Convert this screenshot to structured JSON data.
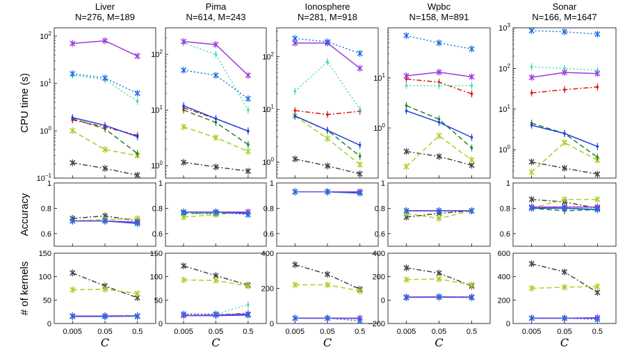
{
  "chart_data": {
    "type": "line",
    "x_categories": [
      "0.005",
      "0.05",
      "0.5"
    ],
    "xlabel": "C",
    "series_colors": {
      "black": "#444444",
      "yellowgreen": "#a8d020",
      "green": "#208020",
      "red": "#e01010",
      "blue": "#1a3fe0",
      "purple": "#9a3ae0",
      "cyan": "#40e0a8",
      "bluex": "#1a6fe0"
    },
    "rows": [
      {
        "ylabel": "CPU time (s)",
        "scale": "log"
      },
      {
        "ylabel": "Accuracy",
        "scale": "linear"
      },
      {
        "ylabel": "# of kernels",
        "scale": "linear"
      }
    ],
    "datasets": [
      {
        "name": "Liver",
        "stats": "N=276, M=189",
        "cpu": {
          "ylim": [
            0.1,
            150
          ],
          "ticks": [
            {
              "v": 0.1,
              "b": "10",
              "e": "−1"
            },
            {
              "v": 1,
              "b": "10",
              "e": "0"
            },
            {
              "v": 10,
              "b": "10",
              "e": "1"
            },
            {
              "v": 100,
              "b": "10",
              "e": "2"
            }
          ],
          "series": {
            "purple": [
              70,
              80,
              38
            ],
            "bluex": [
              16,
              13,
              6.2
            ],
            "cyan": [
              15,
              12,
              4.2
            ],
            "blue": [
              1.9,
              1.3,
              0.75
            ],
            "red": [
              1.7,
              1.2,
              0.8
            ],
            "green": [
              1.8,
              1.1,
              0.33
            ],
            "yellowgreen": [
              1.0,
              0.4,
              0.3
            ],
            "black": [
              0.21,
              0.16,
              0.115
            ]
          }
        },
        "acc": {
          "ylim": [
            0.5,
            1.0
          ],
          "ticks": [
            "0.6",
            "0.8",
            "1"
          ],
          "series": {
            "black": [
              0.72,
              0.74,
              0.7
            ],
            "yellowgreen": [
              0.7,
              0.71,
              0.72
            ],
            "green": [
              0.7,
              0.7,
              0.69
            ],
            "red": [
              0.7,
              0.7,
              0.69
            ],
            "blue": [
              0.7,
              0.7,
              0.68
            ],
            "purple": [
              0.7,
              0.7,
              0.69
            ],
            "cyan": [
              0.7,
              0.7,
              0.69
            ],
            "bluex": [
              0.7,
              0.7,
              0.68
            ]
          }
        },
        "ker": {
          "ylim": [
            0,
            150
          ],
          "ticks": [
            "0",
            "50",
            "100",
            "150"
          ],
          "series": {
            "black": [
              108,
              80,
              55
            ],
            "yellowgreen": [
              72,
              73,
              64
            ],
            "green": [
              16,
              16,
              17
            ],
            "red": [
              16,
              16,
              17
            ],
            "blue": [
              15,
              15,
              16
            ],
            "purple": [
              16,
              16,
              16
            ],
            "cyan": [
              16,
              16,
              17
            ],
            "bluex": [
              15,
              15,
              15
            ]
          }
        }
      },
      {
        "name": "Pima",
        "stats": "N=614, M=243",
        "cpu": {
          "ylim": [
            0.6,
            300
          ],
          "ticks": [
            {
              "v": 1,
              "b": "10",
              "e": "0"
            },
            {
              "v": 10,
              "b": "10",
              "e": "1"
            },
            {
              "v": 100,
              "b": "10",
              "e": "2"
            }
          ],
          "series": {
            "purple": [
              170,
              150,
              42
            ],
            "bluex": [
              52,
              42,
              16
            ],
            "cyan": [
              160,
              100,
              10
            ],
            "blue": [
              12,
              7,
              4.2
            ],
            "red": [
              11,
              7,
              4.2
            ],
            "green": [
              10,
              6,
              2.4
            ],
            "yellowgreen": [
              5,
              3.2,
              1.8
            ],
            "black": [
              1.15,
              0.95,
              0.8
            ]
          }
        },
        "acc": {
          "ylim": [
            0.5,
            1.0
          ],
          "ticks": [
            "0.6",
            "0.8",
            "1"
          ],
          "series": {
            "black": [
              0.76,
              0.76,
              0.77
            ],
            "yellowgreen": [
              0.73,
              0.75,
              0.77
            ],
            "green": [
              0.76,
              0.76,
              0.77
            ],
            "red": [
              0.77,
              0.77,
              0.77
            ],
            "blue": [
              0.77,
              0.77,
              0.76
            ],
            "purple": [
              0.77,
              0.77,
              0.77
            ],
            "cyan": [
              0.76,
              0.76,
              0.76
            ],
            "bluex": [
              0.77,
              0.77,
              0.75
            ]
          }
        },
        "ker": {
          "ylim": [
            0,
            150
          ],
          "ticks": [
            "0",
            "50",
            "100",
            "150"
          ],
          "series": {
            "black": [
              123,
              102,
              82
            ],
            "yellowgreen": [
              93,
              92,
              80
            ],
            "green": [
              17,
              17,
              20
            ],
            "red": [
              18,
              18,
              22
            ],
            "blue": [
              17,
              17,
              18
            ],
            "purple": [
              17,
              18,
              20
            ],
            "cyan": [
              18,
              20,
              40
            ],
            "bluex": [
              20,
              20,
              18
            ]
          }
        }
      },
      {
        "name": "Ionosphere",
        "stats": "N=281, M=918",
        "cpu": {
          "ylim": [
            0.5,
            350
          ],
          "ticks": [
            {
              "v": 1,
              "b": "10",
              "e": "0"
            },
            {
              "v": 10,
              "b": "10",
              "e": "1"
            },
            {
              "v": 100,
              "b": "10",
              "e": "2"
            }
          ],
          "series": {
            "purple": [
              180,
              180,
              60
            ],
            "bluex": [
              220,
              190,
              115
            ],
            "cyan": [
              22,
              80,
              10
            ],
            "blue": [
              7.5,
              4,
              2.1
            ],
            "red": [
              9.5,
              8,
              9.2
            ],
            "green": [
              7.5,
              4,
              1.3
            ],
            "yellowgreen": [
              7.5,
              2.8,
              0.9
            ],
            "black": [
              1.15,
              0.85,
              0.6
            ]
          }
        },
        "acc": {
          "ylim": [
            0.5,
            1.0
          ],
          "ticks": [
            "0.6",
            "0.8",
            "1"
          ],
          "series": {
            "black": [
              0.93,
              0.93,
              0.93
            ],
            "yellowgreen": [
              0.93,
              0.93,
              0.92
            ],
            "green": [
              0.93,
              0.93,
              0.93
            ],
            "red": [
              0.93,
              0.93,
              0.93
            ],
            "blue": [
              0.93,
              0.93,
              0.92
            ],
            "purple": [
              0.93,
              0.93,
              0.93
            ],
            "cyan": [
              0.93,
              0.93,
              0.93
            ],
            "bluex": [
              0.93,
              0.93,
              0.92
            ]
          }
        },
        "ker": {
          "ylim": [
            0,
            400
          ],
          "ticks": [
            "0",
            "200",
            "400"
          ],
          "series": {
            "black": [
              335,
              280,
              195
            ],
            "yellowgreen": [
              220,
              220,
              185
            ],
            "green": [
              30,
              30,
              30
            ],
            "red": [
              30,
              30,
              30
            ],
            "blue": [
              30,
              30,
              28
            ],
            "purple": [
              30,
              30,
              30
            ],
            "cyan": [
              30,
              30,
              30
            ],
            "bluex": [
              30,
              30,
              15
            ]
          }
        }
      },
      {
        "name": "Wpbc",
        "stats": "N=158, M=891",
        "cpu": {
          "ylim": [
            0.1,
            100
          ],
          "ticks": [
            {
              "v": 1,
              "b": "10",
              "e": "0"
            },
            {
              "v": 10,
              "b": "10",
              "e": "1"
            }
          ],
          "series": {
            "bluex": [
              70,
              50,
              38
            ],
            "purple": [
              11,
              13,
              10.5
            ],
            "red": [
              9.5,
              8.2,
              4.8
            ],
            "cyan": [
              7,
              7,
              7
            ],
            "green": [
              2.8,
              1.5,
              0.4
            ],
            "blue": [
              2.2,
              1.3,
              0.65
            ],
            "yellowgreen": [
              0.17,
              0.7,
              0.23
            ],
            "black": [
              0.34,
              0.27,
              0.18
            ]
          }
        },
        "acc": {
          "ylim": [
            0.5,
            1.0
          ],
          "ticks": [
            "0.6",
            "0.8",
            "1"
          ],
          "series": {
            "black": [
              0.73,
              0.76,
              0.78
            ],
            "yellowgreen": [
              0.76,
              0.72,
              0.78
            ],
            "green": [
              0.78,
              0.78,
              0.78
            ],
            "red": [
              0.78,
              0.78,
              0.78
            ],
            "blue": [
              0.78,
              0.78,
              0.78
            ],
            "purple": [
              0.78,
              0.78,
              0.78
            ],
            "cyan": [
              0.78,
              0.78,
              0.78
            ],
            "bluex": [
              0.78,
              0.78,
              0.78
            ]
          }
        },
        "ker": {
          "ylim": [
            -200,
            400
          ],
          "ticks": [
            "−200",
            "0",
            "200",
            "400"
          ],
          "series": {
            "black": [
              275,
              230,
              120
            ],
            "yellowgreen": [
              175,
              180,
              130
            ],
            "green": [
              25,
              25,
              25
            ],
            "red": [
              25,
              25,
              25
            ],
            "blue": [
              25,
              25,
              25
            ],
            "purple": [
              25,
              28,
              25
            ],
            "cyan": [
              25,
              28,
              25
            ],
            "bluex": [
              20,
              25,
              20
            ]
          }
        }
      },
      {
        "name": "Sonar",
        "stats": "N=166, M=1647",
        "cpu": {
          "ylim": [
            0.2,
            1000
          ],
          "ticks": [
            {
              "v": 1,
              "b": "10",
              "e": "0"
            },
            {
              "v": 10,
              "b": "10",
              "e": "1"
            },
            {
              "v": 100,
              "b": "10",
              "e": "2"
            },
            {
              "v": 1000,
              "b": "10",
              "e": "3"
            }
          ],
          "series": {
            "bluex": [
              850,
              800,
              700
            ],
            "cyan": [
              110,
              100,
              90
            ],
            "purple": [
              60,
              80,
              75
            ],
            "red": [
              25,
              30,
              35
            ],
            "blue": [
              4,
              2.5,
              1.2
            ],
            "green": [
              4.5,
              2.5,
              0.65
            ],
            "yellowgreen": [
              0.28,
              1.5,
              0.55
            ],
            "black": [
              0.5,
              0.35,
              0.25
            ]
          }
        },
        "acc": {
          "ylim": [
            0.5,
            1.0
          ],
          "ticks": [
            "0.6",
            "0.8",
            "1"
          ],
          "series": {
            "black": [
              0.87,
              0.85,
              0.8
            ],
            "yellowgreen": [
              0.8,
              0.87,
              0.87
            ],
            "green": [
              0.8,
              0.78,
              0.79
            ],
            "red": [
              0.81,
              0.81,
              0.81
            ],
            "blue": [
              0.8,
              0.8,
              0.79
            ],
            "purple": [
              0.81,
              0.81,
              0.81
            ],
            "cyan": [
              0.8,
              0.8,
              0.8
            ],
            "bluex": [
              0.8,
              0.8,
              0.79
            ]
          }
        },
        "ker": {
          "ylim": [
            0,
            600
          ],
          "ticks": [
            "0",
            "200",
            "400",
            "600"
          ],
          "series": {
            "black": [
              510,
              440,
              265
            ],
            "yellowgreen": [
              300,
              310,
              315
            ],
            "green": [
              45,
              45,
              45
            ],
            "red": [
              45,
              45,
              45
            ],
            "blue": [
              45,
              45,
              45
            ],
            "purple": [
              45,
              45,
              50
            ],
            "cyan": [
              45,
              45,
              45
            ],
            "bluex": [
              45,
              45,
              35
            ]
          }
        }
      }
    ]
  }
}
